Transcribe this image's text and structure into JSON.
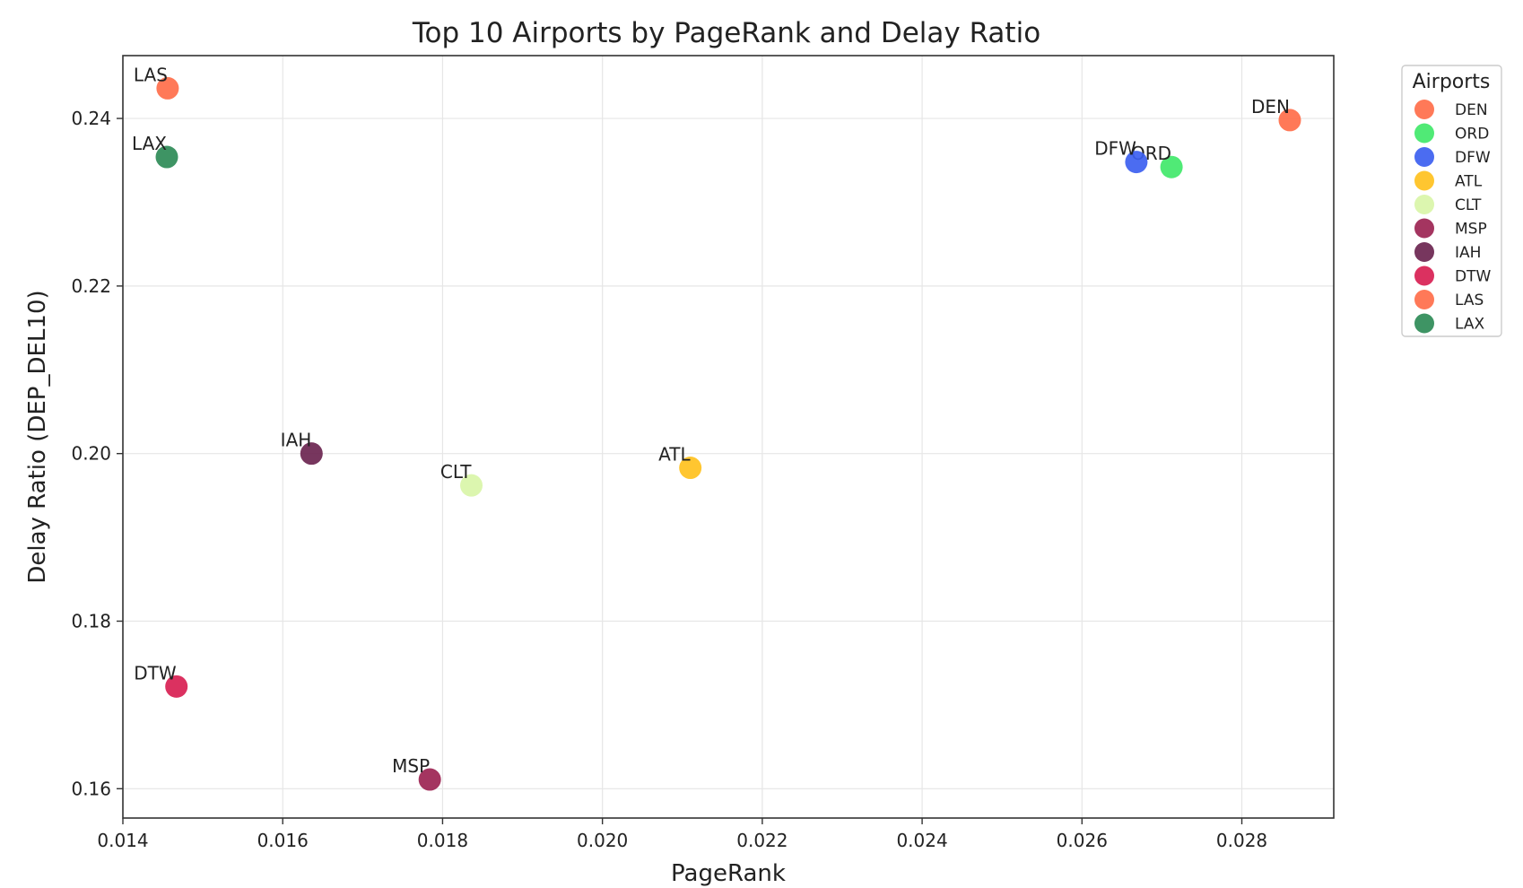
{
  "chart_data": {
    "type": "scatter",
    "title": "Top 10 Airports by PageRank and Delay Ratio",
    "xlabel": "PageRank",
    "ylabel": "Delay Ratio (DEP_DEL10)",
    "xlim": [
      0.014,
      0.02915
    ],
    "ylim": [
      0.1565,
      0.2475
    ],
    "xticks": [
      "0.014",
      "0.016",
      "0.018",
      "0.020",
      "0.022",
      "0.024",
      "0.026",
      "0.028"
    ],
    "yticks": [
      "0.16",
      "0.18",
      "0.20",
      "0.22",
      "0.24"
    ],
    "grid": true,
    "legend_title": "Airports",
    "legend_position": "outside-right",
    "points": [
      {
        "label": "DEN",
        "x": 0.0286,
        "y": 0.2398,
        "color": "#ff6e4a"
      },
      {
        "label": "ORD",
        "x": 0.02712,
        "y": 0.2342,
        "color": "#41e86a"
      },
      {
        "label": "DFW",
        "x": 0.02668,
        "y": 0.2348,
        "color": "#3c5ff0"
      },
      {
        "label": "ATL",
        "x": 0.0211,
        "y": 0.1983,
        "color": "#ffc11e"
      },
      {
        "label": "CLT",
        "x": 0.01836,
        "y": 0.1962,
        "color": "#d9f5a8"
      },
      {
        "label": "MSP",
        "x": 0.01784,
        "y": 0.1611,
        "color": "#9c2452"
      },
      {
        "label": "IAH",
        "x": 0.01636,
        "y": 0.2,
        "color": "#6b2550"
      },
      {
        "label": "DTW",
        "x": 0.01467,
        "y": 0.1722,
        "color": "#d81f52"
      },
      {
        "label": "LAS",
        "x": 0.01456,
        "y": 0.2436,
        "color": "#ff6e4a"
      },
      {
        "label": "LAX",
        "x": 0.01455,
        "y": 0.2354,
        "color": "#2e8b57"
      }
    ]
  }
}
